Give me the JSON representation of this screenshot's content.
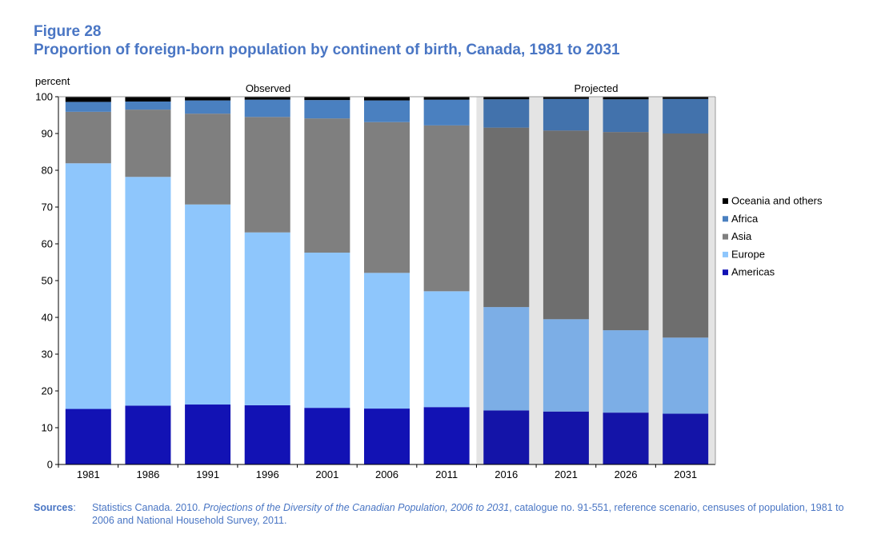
{
  "figure": {
    "label": "Figure 28",
    "title": "Proportion of foreign-born population by continent of birth, Canada, 1981 to 2031"
  },
  "chart_data": {
    "type": "bar",
    "stacked": true,
    "ylabel": "percent",
    "ylim": [
      0,
      100
    ],
    "yticks": [
      "0",
      "10",
      "20",
      "30",
      "40",
      "50",
      "60",
      "70",
      "80",
      "90",
      "100"
    ],
    "categories": [
      "1981",
      "1986",
      "1991",
      "1996",
      "2001",
      "2006",
      "2011",
      "2016",
      "2021",
      "2026",
      "2031"
    ],
    "period_labels": {
      "observed": "Observed",
      "projected": "Projected"
    },
    "projected_from": "2016",
    "series": [
      {
        "name": "Americas",
        "values": [
          15.1,
          16.0,
          16.3,
          16.1,
          15.4,
          15.2,
          15.6,
          14.7,
          14.4,
          14.1,
          13.8
        ],
        "color": "#1212b4",
        "projected_color": "#1414a8"
      },
      {
        "name": "Europe",
        "values": [
          66.8,
          62.2,
          54.4,
          47.0,
          42.2,
          36.9,
          31.5,
          28.1,
          25.1,
          22.4,
          20.7
        ],
        "color": "#8ec6fc",
        "projected_color": "#7caee6"
      },
      {
        "name": "Asia",
        "values": [
          14.0,
          18.3,
          24.7,
          31.4,
          36.5,
          41.0,
          45.1,
          48.8,
          51.3,
          53.9,
          55.5
        ],
        "color": "#7f7f7f",
        "projected_color": "#6e6e6e"
      },
      {
        "name": "Africa",
        "values": [
          2.7,
          2.2,
          3.6,
          4.7,
          5.0,
          5.9,
          7.0,
          7.7,
          8.6,
          8.9,
          9.4
        ],
        "color": "#4a80c0",
        "projected_color": "#4272ac"
      },
      {
        "name": "Oceania and others",
        "values": [
          1.4,
          1.3,
          1.0,
          0.8,
          0.9,
          1.0,
          0.8,
          0.7,
          0.6,
          0.7,
          0.6
        ],
        "color": "#000000",
        "projected_color": "#000000"
      }
    ],
    "legend_order": [
      "Oceania and others",
      "Africa",
      "Asia",
      "Europe",
      "Americas"
    ],
    "legend_position": "right",
    "grid": false,
    "projected_background": "#e4e4e4"
  },
  "sources": {
    "label": "Sources",
    "separator": ":",
    "text_before": "Statistics Canada. 2010. ",
    "italic_title": "Projections of the Diversity of the Canadian Population, 2006 to 2031",
    "text_after": ", catalogue no. 91-551, reference scenario, censuses of population, 1981 to 2006 and National Household Survey, 2011."
  }
}
